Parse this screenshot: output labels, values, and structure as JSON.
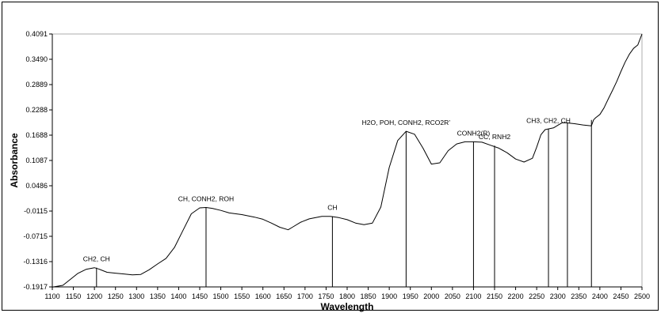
{
  "chart_data": {
    "type": "line",
    "title": "",
    "xlabel": "Wavelength",
    "ylabel": "Absorbance",
    "xlim": [
      1100,
      2500
    ],
    "ylim": [
      -0.1917,
      0.4091
    ],
    "x_ticks": [
      1100,
      1150,
      1200,
      1250,
      1300,
      1350,
      1400,
      1450,
      1500,
      1550,
      1600,
      1650,
      1700,
      1750,
      1800,
      1850,
      1900,
      1950,
      2000,
      2050,
      2100,
      2150,
      2200,
      2250,
      2300,
      2350,
      2400,
      2450,
      2500
    ],
    "y_ticks": [
      "0.4091",
      "0.3490",
      "0.2889",
      "0.2288",
      "0.1688",
      "0.1087",
      "0.0486",
      "-0.0115",
      "-0.0715",
      "-0.1316",
      "-0.1917"
    ],
    "grid": false,
    "legend": "none",
    "series_color": "#000000",
    "series": [
      {
        "x": [
          1100,
          1125,
          1140,
          1160,
          1180,
          1200,
          1210,
          1230,
          1250,
          1270,
          1290,
          1310,
          1330,
          1350,
          1370,
          1390,
          1410,
          1430,
          1450,
          1465,
          1480,
          1500,
          1520,
          1550,
          1580,
          1600,
          1620,
          1640,
          1660,
          1670,
          1690,
          1710,
          1740,
          1760,
          1780,
          1800,
          1820,
          1840,
          1860,
          1880,
          1900,
          1920,
          1940,
          1960,
          1980,
          2000,
          2020,
          2040,
          2060,
          2080,
          2100,
          2120,
          2140,
          2160,
          2180,
          2200,
          2220,
          2240,
          2250,
          2260,
          2270,
          2280,
          2290,
          2300,
          2310,
          2320,
          2340,
          2360,
          2380,
          2385,
          2390,
          2400,
          2410,
          2420,
          2430,
          2440,
          2450,
          2460,
          2470,
          2480,
          2490,
          2500
        ],
        "y": [
          -0.192,
          -0.188,
          -0.176,
          -0.16,
          -0.15,
          -0.146,
          -0.149,
          -0.157,
          -0.159,
          -0.161,
          -0.163,
          -0.162,
          -0.151,
          -0.137,
          -0.124,
          -0.098,
          -0.058,
          -0.018,
          -0.004,
          -0.003,
          -0.005,
          -0.01,
          -0.016,
          -0.02,
          -0.026,
          -0.031,
          -0.04,
          -0.05,
          -0.056,
          -0.05,
          -0.038,
          -0.03,
          -0.024,
          -0.024,
          -0.027,
          -0.032,
          -0.04,
          -0.044,
          -0.04,
          -0.002,
          0.092,
          0.156,
          0.178,
          0.171,
          0.138,
          0.1,
          0.103,
          0.132,
          0.148,
          0.153,
          0.153,
          0.152,
          0.145,
          0.138,
          0.127,
          0.112,
          0.105,
          0.114,
          0.14,
          0.17,
          0.182,
          0.184,
          0.186,
          0.192,
          0.198,
          0.198,
          0.196,
          0.193,
          0.191,
          0.205,
          0.21,
          0.218,
          0.234,
          0.255,
          0.275,
          0.296,
          0.32,
          0.342,
          0.361,
          0.375,
          0.383,
          0.409
        ]
      }
    ],
    "annotations": [
      {
        "text": "CH2, CH",
        "x": 1205,
        "y": -0.146
      },
      {
        "text": "CH, CONH2, ROH",
        "x": 1465,
        "y": -0.003
      },
      {
        "text": "CH",
        "x": 1765,
        "y": -0.024
      },
      {
        "text": "H2O, POH, CONH2, RCO2R’",
        "x": 1940,
        "y": 0.178
      },
      {
        "text": "CONH2(R)",
        "x": 2100,
        "y": 0.153
      },
      {
        "text": "CC, RNH2",
        "x": 2150,
        "y": 0.144
      },
      {
        "text": "CH3, CH2, CH",
        "x": 2278,
        "y": 0.183
      },
      {
        "text": "",
        "x": 2323,
        "y": 0.198
      },
      {
        "text": "",
        "x": 2380,
        "y": 0.205
      }
    ]
  }
}
